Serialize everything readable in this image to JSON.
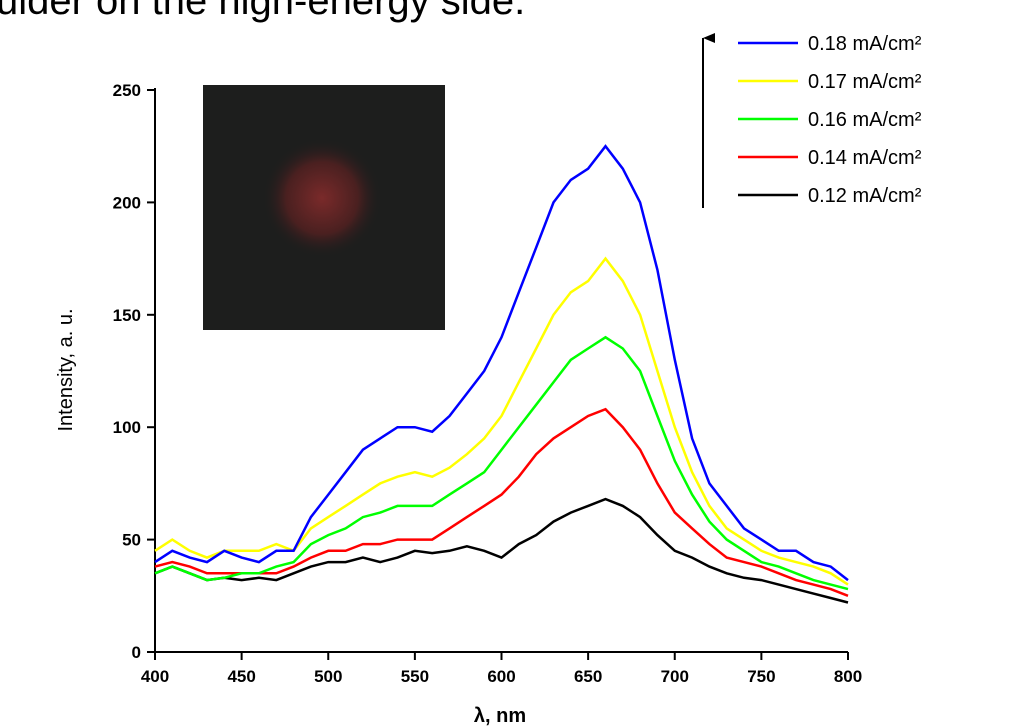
{
  "chart_data": {
    "type": "line",
    "title": "ulder on the high-energy side.",
    "xlabel": "λ, nm",
    "ylabel": "Intensity, a. u.",
    "x": [
      400,
      410,
      420,
      430,
      440,
      450,
      460,
      470,
      480,
      490,
      500,
      510,
      520,
      530,
      540,
      550,
      560,
      570,
      580,
      590,
      600,
      610,
      620,
      630,
      640,
      650,
      660,
      670,
      680,
      690,
      700,
      710,
      720,
      730,
      740,
      750,
      760,
      770,
      780,
      790,
      800
    ],
    "series": [
      {
        "name": "0.18 mA/cm²",
        "color": "#0000ff",
        "values": [
          40,
          45,
          42,
          40,
          45,
          42,
          40,
          45,
          45,
          60,
          70,
          80,
          90,
          95,
          100,
          100,
          98,
          105,
          115,
          125,
          140,
          160,
          180,
          200,
          210,
          215,
          225,
          215,
          200,
          170,
          130,
          95,
          75,
          65,
          55,
          50,
          45,
          45,
          40,
          38,
          32
        ]
      },
      {
        "name": "0.17 mA/cm²",
        "color": "#ffff00",
        "values": [
          45,
          50,
          45,
          42,
          45,
          45,
          45,
          48,
          45,
          55,
          60,
          65,
          70,
          75,
          78,
          80,
          78,
          82,
          88,
          95,
          105,
          120,
          135,
          150,
          160,
          165,
          175,
          165,
          150,
          125,
          100,
          80,
          65,
          55,
          50,
          45,
          42,
          40,
          38,
          35,
          30
        ]
      },
      {
        "name": "0.16 mA/cm²",
        "color": "#00ff00",
        "values": [
          35,
          38,
          35,
          32,
          33,
          35,
          35,
          38,
          40,
          48,
          52,
          55,
          60,
          62,
          65,
          65,
          65,
          70,
          75,
          80,
          90,
          100,
          110,
          120,
          130,
          135,
          140,
          135,
          125,
          105,
          85,
          70,
          58,
          50,
          45,
          40,
          38,
          35,
          32,
          30,
          28
        ]
      },
      {
        "name": "0.14 mA/cm²",
        "color": "#ff0000",
        "values": [
          38,
          40,
          38,
          35,
          35,
          35,
          35,
          35,
          38,
          42,
          45,
          45,
          48,
          48,
          50,
          50,
          50,
          55,
          60,
          65,
          70,
          78,
          88,
          95,
          100,
          105,
          108,
          100,
          90,
          75,
          62,
          55,
          48,
          42,
          40,
          38,
          35,
          32,
          30,
          28,
          25
        ]
      },
      {
        "name": "0.12 mA/cm²",
        "color": "#000000",
        "values": [
          35,
          38,
          35,
          32,
          33,
          32,
          33,
          32,
          35,
          38,
          40,
          40,
          42,
          40,
          42,
          45,
          44,
          45,
          47,
          45,
          42,
          48,
          52,
          58,
          62,
          65,
          68,
          65,
          60,
          52,
          45,
          42,
          38,
          35,
          33,
          32,
          30,
          28,
          26,
          24,
          22
        ]
      }
    ],
    "xlim": [
      400,
      800
    ],
    "xticks": [
      400,
      450,
      500,
      550,
      600,
      650,
      700,
      750,
      800
    ],
    "ylim": [
      0,
      250
    ],
    "yticks": [
      0,
      50,
      100,
      150,
      200,
      250
    ],
    "legend": "upper right"
  }
}
